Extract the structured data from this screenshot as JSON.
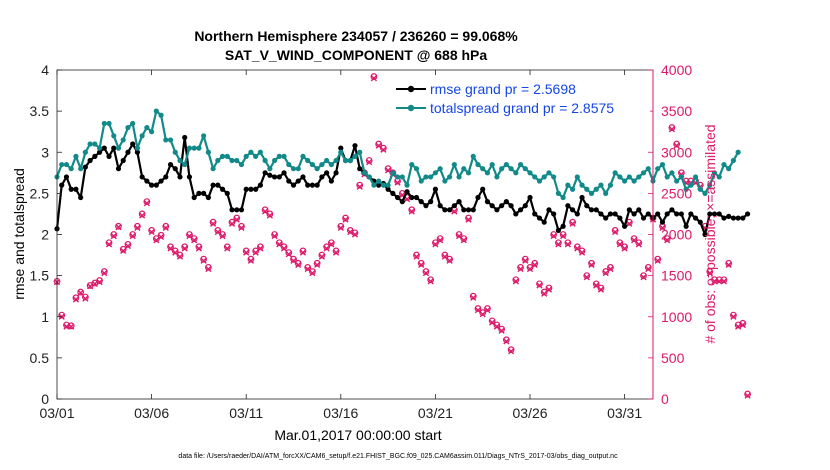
{
  "chart_data": {
    "type": "line",
    "title": "Northern Hemisphere 234057 / 236260 = 99.068%",
    "subtitle": "SAT_V_WIND_COMPONENT @ 688 hPa",
    "xlabel": "Mar.01,2017 00:00:00 start",
    "ylabel_left": "rmse and totalspread",
    "ylabel_right": "# of obs: o=possible; ×=assimilated",
    "xlim": [
      0,
      31.5
    ],
    "ylim_left": [
      0,
      4
    ],
    "ylim_right": [
      0,
      4000
    ],
    "x_tick_values": [
      0,
      5,
      10,
      15,
      20,
      25,
      30
    ],
    "x_tick_labels": [
      "03/01",
      "03/06",
      "03/11",
      "03/16",
      "03/21",
      "03/26",
      "03/31"
    ],
    "y_left_ticks": [
      "0",
      "0.5",
      "1",
      "1.5",
      "2",
      "2.5",
      "3",
      "3.5",
      "4"
    ],
    "y_right_ticks": [
      "0",
      "500",
      "1000",
      "1500",
      "2000",
      "2500",
      "3000",
      "3500",
      "4000"
    ],
    "colors": {
      "rmse": "#000000",
      "spread": "#128a8a",
      "obs": "#dc1a6a",
      "legend_text": "#1446e6"
    },
    "series": [
      {
        "name": "rmse grand pr = 2.5698",
        "axis": "left",
        "x_start": 0,
        "x_step": 0.25,
        "values": [
          2.07,
          2.6,
          2.7,
          2.55,
          2.55,
          2.45,
          2.82,
          2.9,
          2.95,
          3.0,
          3.05,
          2.95,
          3.05,
          2.8,
          2.9,
          3.0,
          3.1,
          3.0,
          2.7,
          2.65,
          2.6,
          2.6,
          2.65,
          2.7,
          2.85,
          2.8,
          2.7,
          3.18,
          2.7,
          2.45,
          2.5,
          2.5,
          2.45,
          2.6,
          2.6,
          2.55,
          2.5,
          2.3,
          2.3,
          2.3,
          2.55,
          2.55,
          2.55,
          2.6,
          2.75,
          2.72,
          2.7,
          2.7,
          2.75,
          2.65,
          2.6,
          2.65,
          2.7,
          2.6,
          2.6,
          2.6,
          2.7,
          2.75,
          2.65,
          2.75,
          3.05,
          2.9,
          2.9,
          3.08,
          2.8,
          2.75,
          2.7,
          2.65,
          2.6,
          2.62,
          2.55,
          2.5,
          2.45,
          2.4,
          2.52,
          2.45,
          2.45,
          2.4,
          2.35,
          2.4,
          2.55,
          2.35,
          2.3,
          2.3,
          2.35,
          2.4,
          2.3,
          2.3,
          2.3,
          2.45,
          2.55,
          2.4,
          2.35,
          2.3,
          2.35,
          2.4,
          2.35,
          2.25,
          2.3,
          2.35,
          2.45,
          2.25,
          2.2,
          2.15,
          2.3,
          2.25,
          2.05,
          2.1,
          2.35,
          2.3,
          2.25,
          2.45,
          2.35,
          2.3,
          2.3,
          2.25,
          2.2,
          2.25,
          2.25,
          2.2,
          2.1,
          2.3,
          2.25,
          2.3,
          2.2,
          2.25,
          2.2,
          2.25,
          2.15,
          2.25,
          2.3,
          2.25,
          2.25,
          2.1,
          2.25,
          2.2,
          2.15,
          2.0,
          2.25,
          2.25,
          2.25,
          2.2,
          2.22,
          2.2,
          2.2,
          2.2,
          2.25
        ]
      },
      {
        "name": "totalspread grand pr = 2.8575",
        "axis": "left",
        "x_start": 0,
        "x_step": 0.25,
        "values": [
          2.7,
          2.85,
          2.85,
          2.8,
          2.95,
          2.8,
          3.0,
          3.1,
          3.1,
          3.05,
          3.35,
          3.35,
          3.2,
          3.05,
          3.15,
          3.3,
          3.35,
          3.05,
          3.2,
          3.3,
          3.25,
          3.5,
          3.45,
          3.15,
          3.15,
          3.0,
          2.9,
          2.85,
          3.05,
          3.05,
          3.05,
          3.2,
          3.0,
          2.8,
          2.9,
          2.95,
          2.95,
          2.9,
          2.9,
          2.85,
          2.95,
          3.0,
          2.95,
          3.0,
          2.9,
          2.8,
          2.9,
          2.95,
          2.95,
          2.85,
          2.8,
          2.8,
          2.95,
          2.9,
          2.85,
          2.8,
          2.85,
          2.9,
          2.85,
          2.9,
          3.0,
          2.9,
          2.9,
          2.95,
          3.0,
          2.75,
          2.7,
          2.6,
          2.65,
          2.6,
          2.6,
          2.75,
          2.7,
          2.7,
          2.6,
          2.85,
          2.8,
          2.65,
          2.7,
          2.7,
          2.75,
          2.8,
          2.65,
          2.7,
          2.85,
          2.7,
          2.8,
          2.75,
          2.95,
          2.85,
          2.8,
          2.75,
          2.85,
          2.7,
          2.8,
          2.85,
          2.8,
          2.75,
          2.85,
          2.8,
          2.75,
          2.7,
          2.65,
          2.7,
          2.75,
          2.7,
          2.5,
          2.45,
          2.6,
          2.55,
          2.7,
          2.6,
          2.55,
          2.5,
          2.55,
          2.6,
          2.5,
          2.6,
          2.75,
          2.7,
          2.65,
          2.7,
          2.65,
          2.7,
          2.75,
          2.8,
          2.65,
          2.8,
          2.85,
          2.7,
          2.75,
          2.65,
          2.7,
          2.55,
          2.6,
          2.7,
          2.55,
          2.5,
          2.6,
          2.75,
          2.7,
          2.85,
          2.8,
          2.9,
          3.0
        ]
      },
      {
        "name": "possible",
        "axis": "right",
        "x_start": 0,
        "x_step": 0.25,
        "values": [
          1430,
          1020,
          900,
          890,
          1230,
          1300,
          1240,
          1380,
          1410,
          1440,
          1550,
          1900,
          2000,
          2100,
          1820,
          1880,
          2000,
          2100,
          2250,
          2400,
          2050,
          1950,
          1990,
          2100,
          1850,
          1800,
          1750,
          1850,
          2000,
          1950,
          1850,
          1700,
          1600,
          2150,
          2050,
          2000,
          1850,
          2150,
          2200,
          2100,
          1800,
          1700,
          1800,
          1850,
          2300,
          2250,
          2000,
          1900,
          1850,
          1780,
          1700,
          1650,
          1800,
          1600,
          1550,
          1650,
          1750,
          1850,
          1900,
          1800,
          2100,
          2200,
          2050,
          2020,
          2600,
          2750,
          2900,
          3920,
          3100,
          3050,
          2800,
          2750,
          2650,
          2500,
          2450,
          2300,
          1750,
          1650,
          1550,
          1450,
          1900,
          1950,
          1750,
          1700,
          2300,
          2000,
          1950,
          2200,
          1250,
          1100,
          1050,
          1100,
          950,
          900,
          850,
          720,
          600,
          1450,
          1600,
          1700,
          1600,
          1650,
          1400,
          1300,
          1350,
          2000,
          1900,
          2000,
          1900,
          2150,
          1850,
          1800,
          1500,
          1650,
          1400,
          1350,
          1550,
          1600,
          2050,
          1900,
          1850,
          2150,
          1950,
          1900,
          1500,
          1600,
          2200,
          1700,
          2100,
          1950,
          3300,
          3100,
          2750,
          2650,
          2650,
          2650,
          2600,
          2100,
          1550,
          1450,
          1450,
          1450,
          1650,
          1020,
          900,
          920,
          60
        ]
      },
      {
        "name": "assimilated",
        "axis": "right",
        "x_start": 0,
        "x_step": 0.25,
        "values": [
          1420,
          1000,
          880,
          880,
          1210,
          1290,
          1220,
          1370,
          1400,
          1420,
          1530,
          1880,
          1980,
          2090,
          1800,
          1860,
          1980,
          2080,
          2230,
          2380,
          2030,
          1930,
          1970,
          2080,
          1830,
          1780,
          1730,
          1830,
          1980,
          1930,
          1830,
          1680,
          1580,
          2130,
          2030,
          1980,
          1830,
          2130,
          2180,
          2080,
          1780,
          1680,
          1780,
          1830,
          2280,
          2230,
          1980,
          1880,
          1830,
          1760,
          1680,
          1630,
          1780,
          1580,
          1530,
          1630,
          1730,
          1830,
          1880,
          1780,
          2080,
          2180,
          2030,
          2000,
          2580,
          2730,
          2880,
          3900,
          3080,
          3030,
          2780,
          2730,
          2630,
          2480,
          2430,
          2280,
          1730,
          1630,
          1530,
          1430,
          1880,
          1930,
          1730,
          1680,
          2280,
          1980,
          1930,
          2180,
          1230,
          1080,
          1030,
          1080,
          930,
          880,
          830,
          700,
          580,
          1430,
          1580,
          1680,
          1580,
          1630,
          1380,
          1280,
          1330,
          1980,
          1880,
          1980,
          1880,
          2130,
          1830,
          1780,
          1480,
          1630,
          1380,
          1330,
          1530,
          1580,
          2030,
          1880,
          1830,
          2130,
          1930,
          1880,
          1480,
          1580,
          2180,
          1680,
          2080,
          1930,
          3280,
          3080,
          2730,
          2630,
          2630,
          2630,
          2580,
          2080,
          1530,
          1430,
          1430,
          1430,
          1630,
          1000,
          880,
          900,
          40
        ]
      }
    ],
    "legend": [
      "rmse grand pr = 2.5698",
      "totalspread grand pr = 2.8575"
    ],
    "legend_position": "top-right"
  },
  "footer": "data file: /Users/raeder/DAI/ATM_forcXX/CAM6_setup/f.e21.FHIST_BGC.f09_025.CAM6assim.011/Diags_NTrS_2017-03/obs_diag_output.nc"
}
